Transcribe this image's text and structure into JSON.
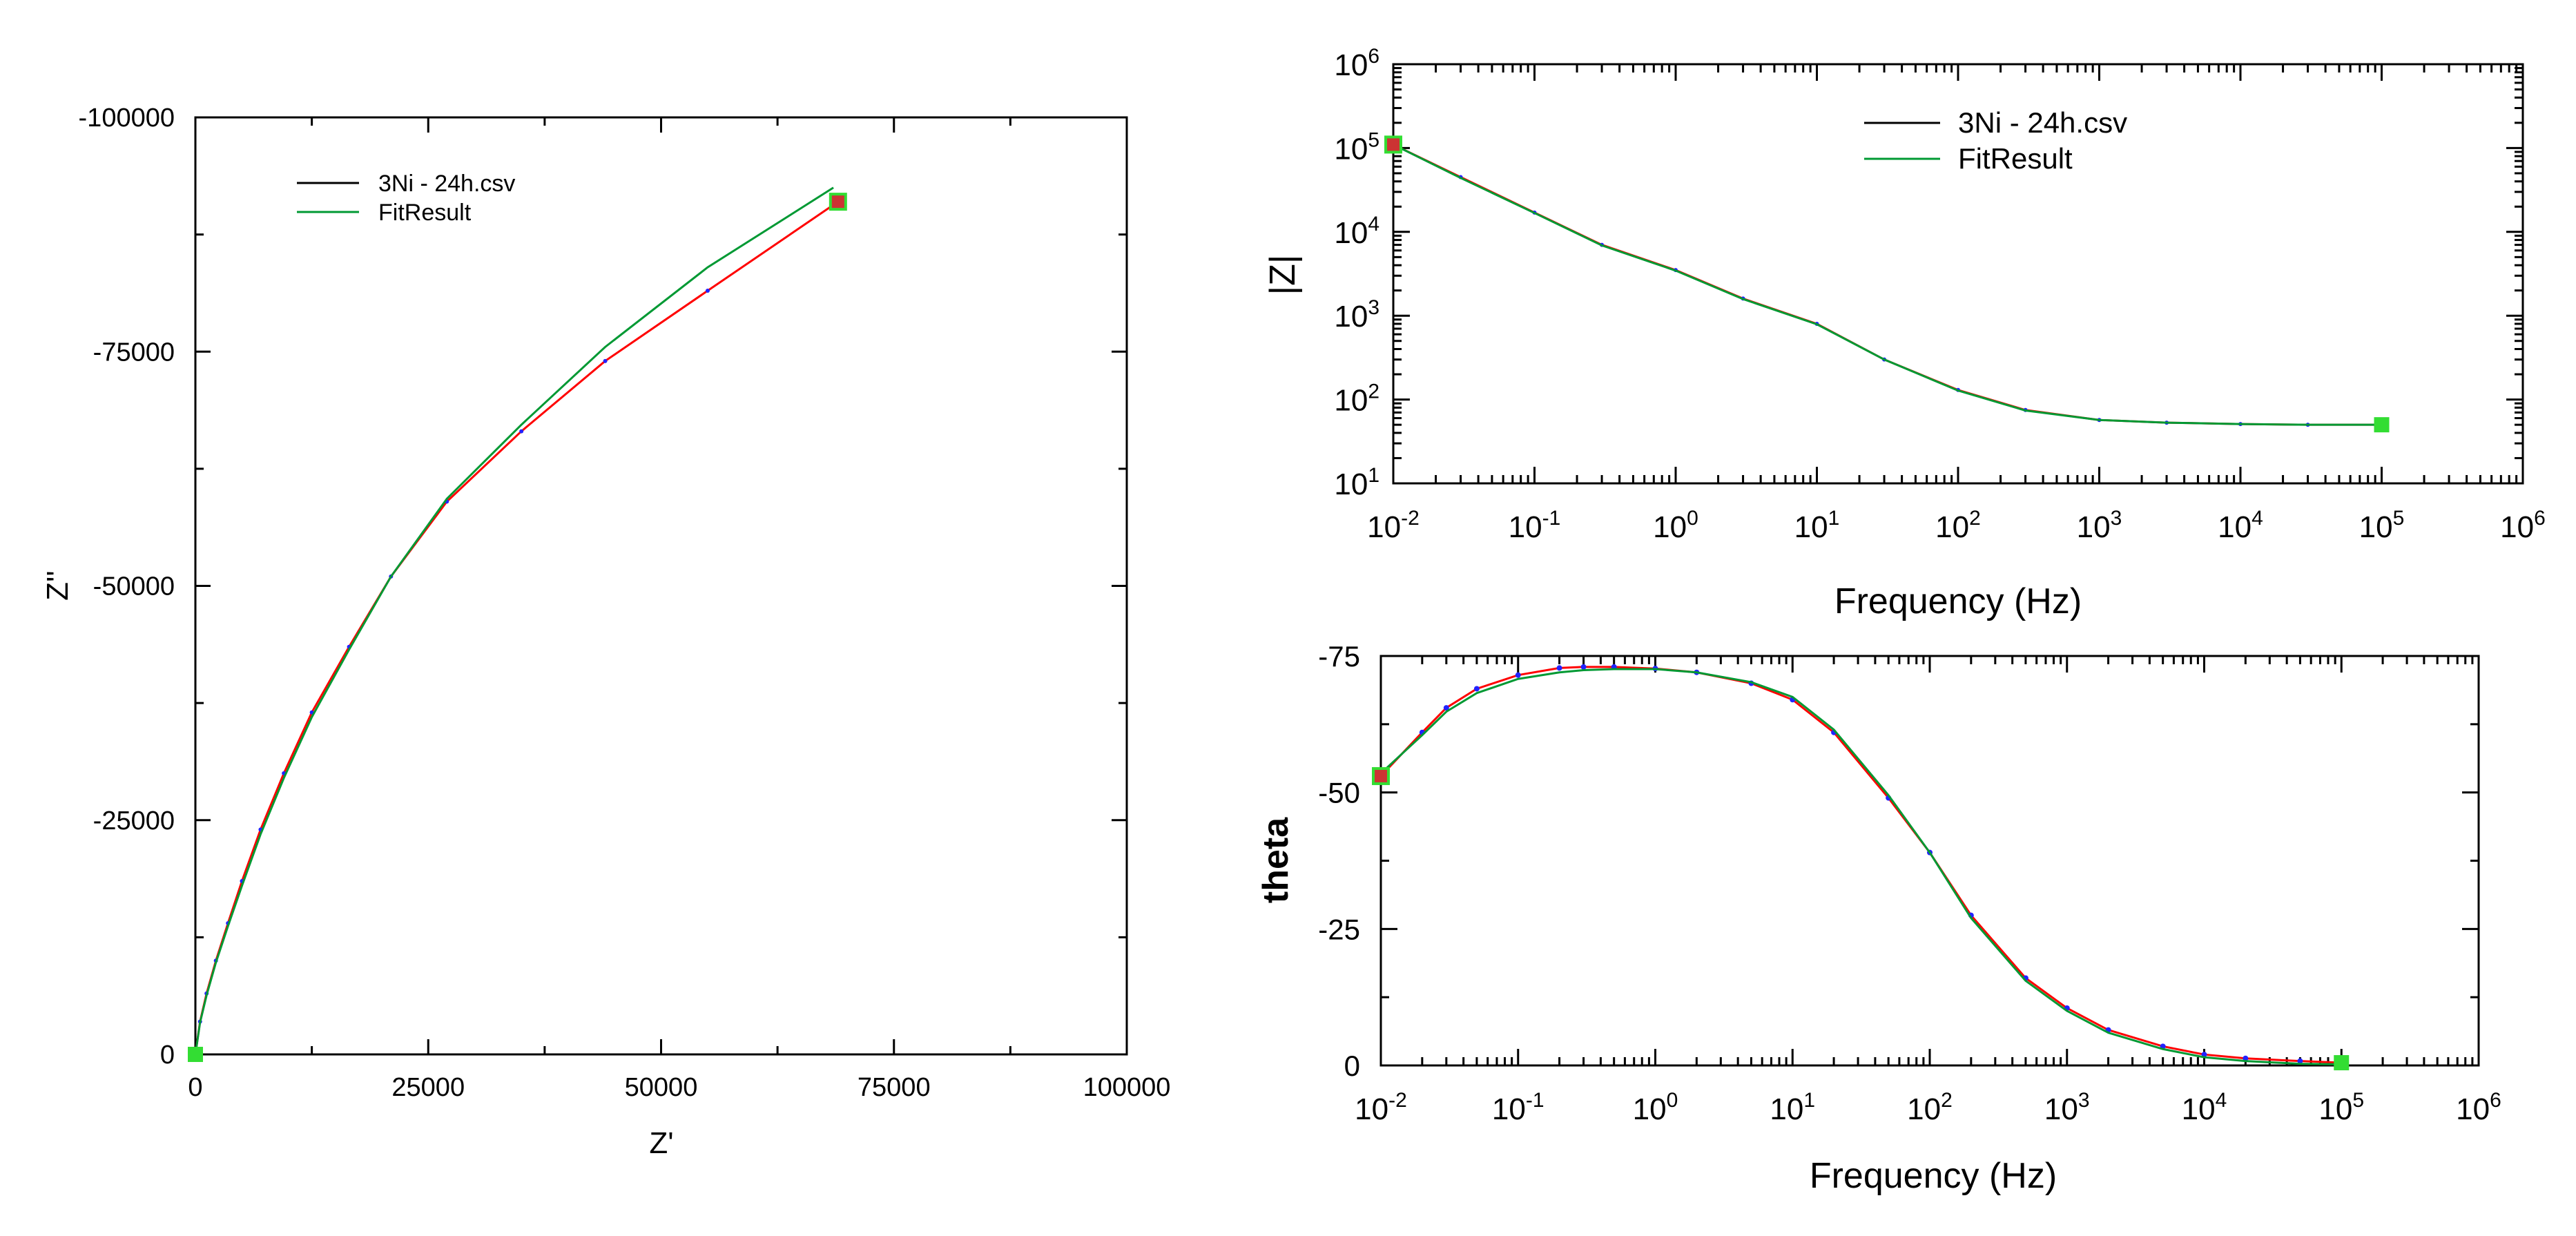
{
  "colors": {
    "data": "#ff0000",
    "fit": "#009933",
    "marker": "#33dd33",
    "endpoint": "#cc3333",
    "points": "#2222ff"
  },
  "chart_data": [
    {
      "id": "nyquist",
      "type": "line",
      "xlabel": "Z'",
      "ylabel": "Z''",
      "xlim": [
        0,
        100000
      ],
      "ylim": [
        0,
        -100000
      ],
      "xticks": [
        0,
        25000,
        50000,
        75000,
        100000
      ],
      "xtick_labels": [
        "0",
        "25000",
        "50000",
        "75000",
        "100000"
      ],
      "yticks": [
        0,
        -25000,
        -50000,
        -75000,
        -100000
      ],
      "ytick_labels": [
        "0",
        "-25000",
        "-50000",
        "-75000",
        "-100000"
      ],
      "legend": [
        "3Ni - 24h.csv",
        "FitResult"
      ],
      "legend_position": "top-left",
      "series": [
        {
          "name": "3Ni - 24h.csv",
          "x": [
            0,
            500,
            1200,
            2200,
            3500,
            5000,
            7000,
            9500,
            12500,
            16500,
            21000,
            27000,
            35000,
            44000,
            55000,
            69000
          ],
          "y": [
            0,
            -3500,
            -6500,
            -10000,
            -14000,
            -18500,
            -24000,
            -30000,
            -36500,
            -43500,
            -51000,
            -59000,
            -66500,
            -74000,
            -81500,
            -91000
          ]
        },
        {
          "name": "FitResult",
          "x": [
            0,
            500,
            1200,
            2200,
            3500,
            5000,
            7000,
            9500,
            12500,
            16500,
            21000,
            27000,
            35000,
            44000,
            55000,
            68500
          ],
          "y": [
            0,
            -3400,
            -6300,
            -9800,
            -13700,
            -18000,
            -23500,
            -29500,
            -36000,
            -43200,
            -51000,
            -59300,
            -67200,
            -75500,
            -84000,
            -92500
          ]
        }
      ]
    },
    {
      "id": "bode-magnitude",
      "type": "line",
      "xlabel": "Frequency (Hz)",
      "ylabel": "|Z|",
      "xscale": "log",
      "yscale": "log",
      "xlim": [
        0.01,
        1000000
      ],
      "ylim": [
        10,
        1000000
      ],
      "xtick_labels": [
        [
          "10",
          "-2"
        ],
        [
          "10",
          "-1"
        ],
        [
          "10",
          "0"
        ],
        [
          "10",
          "1"
        ],
        [
          "10",
          "2"
        ],
        [
          "10",
          "3"
        ],
        [
          "10",
          "4"
        ],
        [
          "10",
          "5"
        ],
        [
          "10",
          "6"
        ]
      ],
      "ytick_labels": [
        [
          "10",
          "1"
        ],
        [
          "10",
          "2"
        ],
        [
          "10",
          "3"
        ],
        [
          "10",
          "4"
        ],
        [
          "10",
          "5"
        ],
        [
          "10",
          "6"
        ]
      ],
      "legend": [
        "3Ni - 24h.csv",
        "FitResult"
      ],
      "legend_position": "top-center",
      "series": [
        {
          "name": "3Ni - 24h.csv",
          "x": [
            0.01,
            0.03,
            0.1,
            0.3,
            1,
            3,
            10,
            30,
            100,
            300,
            1000,
            3000,
            10000,
            30000,
            100000
          ],
          "y": [
            110000,
            45000,
            17000,
            7000,
            3500,
            1600,
            800,
            300,
            130,
            75,
            57,
            53,
            51,
            50,
            50
          ]
        },
        {
          "name": "FitResult",
          "x": [
            0.01,
            0.03,
            0.1,
            0.3,
            1,
            3,
            10,
            30,
            100,
            300,
            1000,
            3000,
            10000,
            30000,
            100000
          ],
          "y": [
            110000,
            44000,
            16800,
            6900,
            3450,
            1580,
            790,
            300,
            128,
            74,
            57,
            53,
            51,
            50,
            50
          ]
        }
      ]
    },
    {
      "id": "bode-phase",
      "type": "line",
      "xlabel": "Frequency (Hz)",
      "ylabel": "theta",
      "xscale": "log",
      "xlim": [
        0.01,
        1000000
      ],
      "ylim": [
        0,
        -75
      ],
      "yticks": [
        0,
        -25,
        -50,
        -75
      ],
      "ytick_labels": [
        "0",
        "-25",
        "-50",
        "-75"
      ],
      "xtick_labels": [
        [
          "10",
          "-2"
        ],
        [
          "10",
          "-1"
        ],
        [
          "10",
          "0"
        ],
        [
          "10",
          "1"
        ],
        [
          "10",
          "2"
        ],
        [
          "10",
          "3"
        ],
        [
          "10",
          "4"
        ],
        [
          "10",
          "5"
        ],
        [
          "10",
          "6"
        ]
      ],
      "series": [
        {
          "name": "3Ni - 24h.csv",
          "x": [
            0.01,
            0.02,
            0.03,
            0.05,
            0.1,
            0.2,
            0.3,
            0.5,
            1,
            2,
            5,
            10,
            20,
            50,
            100,
            200,
            500,
            1000,
            2000,
            5000,
            10000,
            20000,
            50000,
            100000
          ],
          "y": [
            -53,
            -61,
            -65.5,
            -69,
            -71.5,
            -72.8,
            -73,
            -73,
            -72.7,
            -72,
            -70,
            -67,
            -61,
            -49,
            -39,
            -27.5,
            -16,
            -10.5,
            -6.5,
            -3.5,
            -2,
            -1.3,
            -0.8,
            -0.5
          ]
        },
        {
          "name": "FitResult",
          "x": [
            0.01,
            0.02,
            0.03,
            0.05,
            0.1,
            0.2,
            0.3,
            0.5,
            1,
            2,
            5,
            10,
            20,
            50,
            100,
            200,
            500,
            1000,
            2000,
            5000,
            10000,
            20000,
            50000,
            100000
          ],
          "y": [
            -53.5,
            -60.5,
            -64.8,
            -68.2,
            -70.8,
            -72,
            -72.4,
            -72.6,
            -72.6,
            -72,
            -70.2,
            -67.5,
            -61.5,
            -49.5,
            -39,
            -27,
            -15.5,
            -10,
            -6,
            -3,
            -1.5,
            -0.8,
            -0.3,
            -0.2
          ]
        }
      ]
    }
  ]
}
